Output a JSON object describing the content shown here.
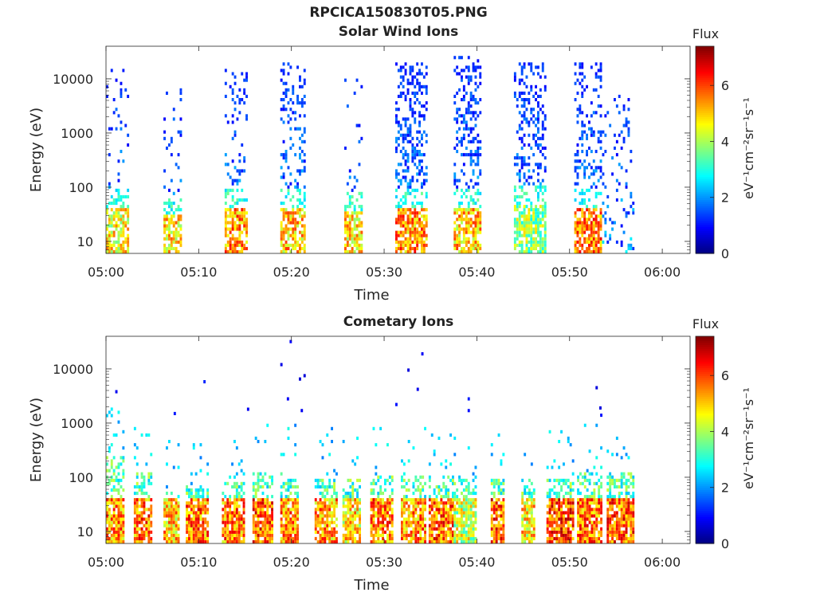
{
  "figure_title": "RPCICA150830T05.PNG",
  "chart_data": [
    {
      "type": "heatmap",
      "title": "Solar Wind Ions",
      "xlabel": "Time",
      "ylabel": "Energy (eV)",
      "y_scale": "log",
      "x_ticks": [
        "05:00",
        "05:10",
        "05:20",
        "05:30",
        "05:40",
        "05:50",
        "06:00"
      ],
      "y_ticks": [
        "10",
        "100",
        "1000",
        "10000"
      ],
      "x_range_minutes": [
        0,
        63
      ],
      "y_range_eV": [
        6,
        40000
      ],
      "colorbar": {
        "label": "Flux",
        "unit_label": "eV⁻¹cm⁻²sr⁻¹s⁻¹",
        "ticks": [
          "0",
          "2",
          "4",
          "6"
        ],
        "range": [
          0,
          7.4
        ],
        "colormap": "jet"
      },
      "bursts": [
        {
          "t_start": 0.0,
          "t_end": 2.3,
          "scatter_e_max": 15000,
          "scatter_density": 0.18,
          "core_e_max": 40,
          "core_level": 5.0
        },
        {
          "t_start": 6.2,
          "t_end": 8.2,
          "scatter_e_max": 8000,
          "scatter_density": 0.15,
          "core_e_max": 30,
          "core_level": 5.2
        },
        {
          "t_start": 12.8,
          "t_end": 15.2,
          "scatter_e_max": 15000,
          "scatter_density": 0.35,
          "core_e_max": 40,
          "core_level": 5.8
        },
        {
          "t_start": 18.8,
          "t_end": 21.5,
          "scatter_e_max": 20000,
          "scatter_density": 0.55,
          "core_e_max": 40,
          "core_level": 5.4
        },
        {
          "t_start": 25.7,
          "t_end": 27.5,
          "scatter_e_max": 10000,
          "scatter_density": 0.12,
          "core_e_max": 35,
          "core_level": 5.2
        },
        {
          "t_start": 31.2,
          "t_end": 34.5,
          "scatter_e_max": 20000,
          "scatter_density": 0.7,
          "core_e_max": 40,
          "core_level": 5.8
        },
        {
          "t_start": 37.5,
          "t_end": 40.5,
          "scatter_e_max": 25000,
          "scatter_density": 0.7,
          "core_e_max": 40,
          "core_level": 5.4
        },
        {
          "t_start": 44.0,
          "t_end": 47.5,
          "scatter_e_max": 20000,
          "scatter_density": 0.65,
          "core_e_max": 50,
          "core_level": 4.2
        },
        {
          "t_start": 50.5,
          "t_end": 53.5,
          "scatter_e_max": 20000,
          "scatter_density": 0.6,
          "core_e_max": 40,
          "core_level": 6.0
        },
        {
          "t_start": 53.5,
          "t_end": 56.8,
          "scatter_e_max": 5000,
          "scatter_density": 0.25,
          "core_e_max": 0,
          "core_level": 0
        }
      ]
    },
    {
      "type": "heatmap",
      "title": "Cometary Ions",
      "xlabel": "Time",
      "ylabel": "Energy (eV)",
      "y_scale": "log",
      "x_ticks": [
        "05:00",
        "05:10",
        "05:20",
        "05:30",
        "05:40",
        "05:50",
        "06:00"
      ],
      "y_ticks": [
        "10",
        "100",
        "1000",
        "10000"
      ],
      "x_range_minutes": [
        0,
        63
      ],
      "y_range_eV": [
        6,
        40000
      ],
      "colorbar": {
        "label": "Flux",
        "unit_label": "eV⁻¹cm⁻²sr⁻¹s⁻¹",
        "ticks": [
          "0",
          "2",
          "4",
          "6"
        ],
        "range": [
          0,
          7.4
        ],
        "colormap": "jet"
      },
      "bursts": [
        {
          "t_start": 0.0,
          "t_end": 1.8,
          "core_level": 6.4,
          "halo_e_max": 250
        },
        {
          "t_start": 3.0,
          "t_end": 5.0,
          "core_level": 6.6,
          "halo_e_max": 130
        },
        {
          "t_start": 6.2,
          "t_end": 7.8,
          "core_level": 6.0,
          "halo_e_max": 60
        },
        {
          "t_start": 8.6,
          "t_end": 11.0,
          "core_level": 6.6,
          "halo_e_max": 70
        },
        {
          "t_start": 12.5,
          "t_end": 14.8,
          "core_level": 6.5,
          "halo_e_max": 80
        },
        {
          "t_start": 15.8,
          "t_end": 18.0,
          "core_level": 6.8,
          "halo_e_max": 130
        },
        {
          "t_start": 18.8,
          "t_end": 20.8,
          "core_level": 6.5,
          "halo_e_max": 130
        },
        {
          "t_start": 22.5,
          "t_end": 24.8,
          "core_level": 6.3,
          "halo_e_max": 100
        },
        {
          "t_start": 25.5,
          "t_end": 27.5,
          "core_level": 5.8,
          "halo_e_max": 100
        },
        {
          "t_start": 28.5,
          "t_end": 31.0,
          "core_level": 6.6,
          "halo_e_max": 110
        },
        {
          "t_start": 31.8,
          "t_end": 34.5,
          "core_level": 6.4,
          "halo_e_max": 110
        },
        {
          "t_start": 34.8,
          "t_end": 37.5,
          "core_level": 6.7,
          "halo_e_max": 110
        },
        {
          "t_start": 37.5,
          "t_end": 40.0,
          "core_level": 5.2,
          "halo_e_max": 100
        },
        {
          "t_start": 41.5,
          "t_end": 43.0,
          "core_level": 6.8,
          "halo_e_max": 100
        },
        {
          "t_start": 44.8,
          "t_end": 46.2,
          "core_level": 5.8,
          "halo_e_max": 90
        },
        {
          "t_start": 47.5,
          "t_end": 50.5,
          "core_level": 6.9,
          "halo_e_max": 100
        },
        {
          "t_start": 50.8,
          "t_end": 53.5,
          "core_level": 6.6,
          "halo_e_max": 130
        },
        {
          "t_start": 54.0,
          "t_end": 56.8,
          "core_level": 6.8,
          "halo_e_max": 120
        }
      ],
      "sparse_points": [
        {
          "t": 1.0,
          "e": 3800
        },
        {
          "t": 7.3,
          "e": 1500
        },
        {
          "t": 10.5,
          "e": 5800
        },
        {
          "t": 15.2,
          "e": 1800
        },
        {
          "t": 18.8,
          "e": 12000
        },
        {
          "t": 19.8,
          "e": 32000
        },
        {
          "t": 20.8,
          "e": 6500
        },
        {
          "t": 21.3,
          "e": 7500
        },
        {
          "t": 21.0,
          "e": 1700
        },
        {
          "t": 19.5,
          "e": 2800
        },
        {
          "t": 32.5,
          "e": 9500
        },
        {
          "t": 34.0,
          "e": 19000
        },
        {
          "t": 33.5,
          "e": 4200
        },
        {
          "t": 31.2,
          "e": 2200
        },
        {
          "t": 39.0,
          "e": 2800
        },
        {
          "t": 39.0,
          "e": 1700
        },
        {
          "t": 52.8,
          "e": 4500
        },
        {
          "t": 53.2,
          "e": 1900
        },
        {
          "t": 53.3,
          "e": 1400
        }
      ]
    }
  ]
}
